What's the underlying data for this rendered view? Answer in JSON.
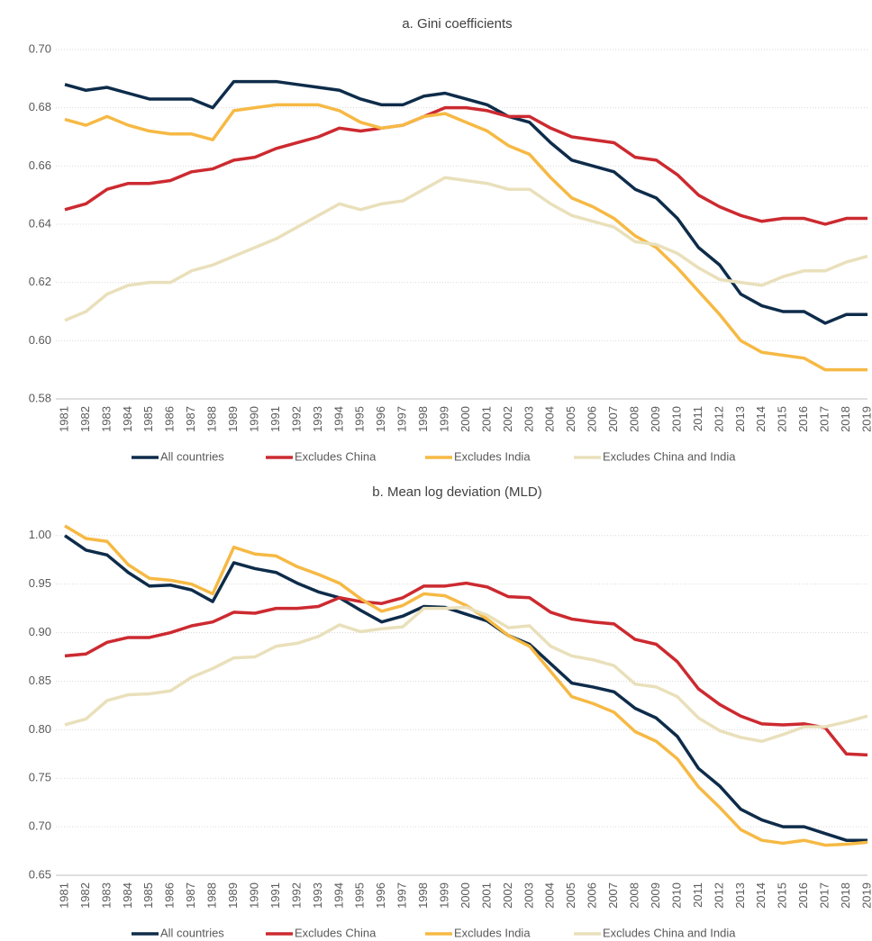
{
  "chart_data": [
    {
      "type": "line",
      "title": "a. Gini coefficients",
      "categories": [
        "1981",
        "1982",
        "1983",
        "1984",
        "1985",
        "1986",
        "1987",
        "1988",
        "1989",
        "1990",
        "1991",
        "1992",
        "1993",
        "1994",
        "1995",
        "1996",
        "1997",
        "1998",
        "1999",
        "2000",
        "2001",
        "2002",
        "2003",
        "2004",
        "2005",
        "2006",
        "2007",
        "2008",
        "2009",
        "2010",
        "2011",
        "2012",
        "2013",
        "2014",
        "2015",
        "2016",
        "2017",
        "2018",
        "2019"
      ],
      "ylim": [
        0.58,
        0.7
      ],
      "yticks": [
        {
          "value": 0.58,
          "label": "0.58"
        },
        {
          "value": 0.6,
          "label": "0.60"
        },
        {
          "value": 0.62,
          "label": "0.62"
        },
        {
          "value": 0.64,
          "label": "0.64"
        },
        {
          "value": 0.66,
          "label": "0.66"
        },
        {
          "value": 0.68,
          "label": "0.68"
        },
        {
          "value": 0.7,
          "label": "0.70"
        }
      ],
      "grid": true,
      "series": [
        {
          "name": "All countries",
          "color": "#0e2c4a",
          "values": [
            0.688,
            0.686,
            0.687,
            0.685,
            0.683,
            0.683,
            0.683,
            0.68,
            0.689,
            0.689,
            0.689,
            0.688,
            0.687,
            0.686,
            0.683,
            0.681,
            0.681,
            0.684,
            0.685,
            0.683,
            0.681,
            0.677,
            0.675,
            0.668,
            0.662,
            0.66,
            0.658,
            0.652,
            0.649,
            0.642,
            0.632,
            0.626,
            0.616,
            0.612,
            0.61,
            0.61,
            0.606,
            0.609,
            0.609
          ]
        },
        {
          "name": "Excludes China",
          "color": "#cc2a30",
          "values": [
            0.645,
            0.647,
            0.652,
            0.654,
            0.654,
            0.655,
            0.658,
            0.659,
            0.662,
            0.663,
            0.666,
            0.668,
            0.67,
            0.673,
            0.672,
            0.673,
            0.674,
            0.677,
            0.68,
            0.68,
            0.679,
            0.677,
            0.677,
            0.673,
            0.67,
            0.669,
            0.668,
            0.663,
            0.662,
            0.657,
            0.65,
            0.646,
            0.643,
            0.641,
            0.642,
            0.642,
            0.64,
            0.642,
            0.642
          ]
        },
        {
          "name": "Excludes India",
          "color": "#f6b944",
          "values": [
            0.676,
            0.674,
            0.677,
            0.674,
            0.672,
            0.671,
            0.671,
            0.669,
            0.679,
            0.68,
            0.681,
            0.681,
            0.681,
            0.679,
            0.675,
            0.673,
            0.674,
            0.677,
            0.678,
            0.675,
            0.672,
            0.667,
            0.664,
            0.656,
            0.649,
            0.646,
            0.642,
            0.636,
            0.632,
            0.625,
            0.617,
            0.609,
            0.6,
            0.596,
            0.595,
            0.594,
            0.59,
            0.59,
            0.59
          ]
        },
        {
          "name": "Excludes China and India",
          "color": "#e9e0bb",
          "values": [
            0.607,
            0.61,
            0.616,
            0.619,
            0.62,
            0.62,
            0.624,
            0.626,
            0.629,
            0.632,
            0.635,
            0.639,
            0.643,
            0.647,
            0.645,
            0.647,
            0.648,
            0.652,
            0.656,
            0.655,
            0.654,
            0.652,
            0.652,
            0.647,
            0.643,
            0.641,
            0.639,
            0.634,
            0.633,
            0.63,
            0.625,
            0.621,
            0.62,
            0.619,
            0.622,
            0.624,
            0.624,
            0.627,
            0.629
          ]
        }
      ]
    },
    {
      "type": "line",
      "title": "b. Mean log deviation (MLD)",
      "categories": [
        "1981",
        "1982",
        "1983",
        "1984",
        "1985",
        "1986",
        "1987",
        "1988",
        "1989",
        "1990",
        "1991",
        "1992",
        "1993",
        "1994",
        "1995",
        "1996",
        "1997",
        "1998",
        "1999",
        "2000",
        "2001",
        "2002",
        "2003",
        "2004",
        "2005",
        "2006",
        "2007",
        "2008",
        "2009",
        "2010",
        "2011",
        "2012",
        "2013",
        "2014",
        "2015",
        "2016",
        "2017",
        "2018",
        "2019"
      ],
      "ylim": [
        0.65,
        1.01
      ],
      "yticks": [
        {
          "value": 0.65,
          "label": "0.65"
        },
        {
          "value": 0.7,
          "label": "0.70"
        },
        {
          "value": 0.75,
          "label": "0.75"
        },
        {
          "value": 0.8,
          "label": "0.80"
        },
        {
          "value": 0.85,
          "label": "0.85"
        },
        {
          "value": 0.9,
          "label": "0.90"
        },
        {
          "value": 0.95,
          "label": "0.95"
        },
        {
          "value": 1.0,
          "label": "1.00"
        }
      ],
      "grid": true,
      "series": [
        {
          "name": "All countries",
          "color": "#0e2c4a",
          "values": [
            1.0,
            0.985,
            0.98,
            0.962,
            0.948,
            0.949,
            0.944,
            0.932,
            0.972,
            0.966,
            0.962,
            0.951,
            0.942,
            0.936,
            0.923,
            0.911,
            0.917,
            0.927,
            0.926,
            0.919,
            0.912,
            0.897,
            0.888,
            0.868,
            0.848,
            0.844,
            0.839,
            0.822,
            0.812,
            0.793,
            0.76,
            0.742,
            0.718,
            0.707,
            0.7,
            0.7,
            0.693,
            0.686,
            0.686
          ]
        },
        {
          "name": "Excludes China",
          "color": "#cc2a30",
          "values": [
            0.876,
            0.878,
            0.89,
            0.895,
            0.895,
            0.9,
            0.907,
            0.911,
            0.921,
            0.92,
            0.925,
            0.925,
            0.927,
            0.936,
            0.932,
            0.93,
            0.936,
            0.948,
            0.948,
            0.951,
            0.947,
            0.937,
            0.936,
            0.921,
            0.914,
            0.911,
            0.909,
            0.893,
            0.888,
            0.87,
            0.842,
            0.826,
            0.814,
            0.806,
            0.805,
            0.806,
            0.802,
            0.775,
            0.774
          ]
        },
        {
          "name": "Excludes India",
          "color": "#f6b944",
          "values": [
            1.01,
            0.997,
            0.994,
            0.97,
            0.956,
            0.954,
            0.95,
            0.94,
            0.988,
            0.981,
            0.979,
            0.968,
            0.96,
            0.951,
            0.935,
            0.922,
            0.928,
            0.94,
            0.938,
            0.928,
            0.914,
            0.897,
            0.886,
            0.86,
            0.834,
            0.827,
            0.818,
            0.798,
            0.788,
            0.77,
            0.741,
            0.72,
            0.697,
            0.686,
            0.683,
            0.686,
            0.681,
            0.682,
            0.684
          ]
        },
        {
          "name": "Excludes China and India",
          "color": "#e9e0bb",
          "values": [
            0.805,
            0.811,
            0.83,
            0.836,
            0.837,
            0.84,
            0.854,
            0.863,
            0.874,
            0.875,
            0.886,
            0.889,
            0.896,
            0.908,
            0.901,
            0.904,
            0.906,
            0.925,
            0.925,
            0.926,
            0.918,
            0.905,
            0.907,
            0.886,
            0.876,
            0.872,
            0.866,
            0.847,
            0.844,
            0.834,
            0.812,
            0.799,
            0.792,
            0.788,
            0.795,
            0.803,
            0.803,
            0.808,
            0.814
          ]
        }
      ]
    }
  ]
}
